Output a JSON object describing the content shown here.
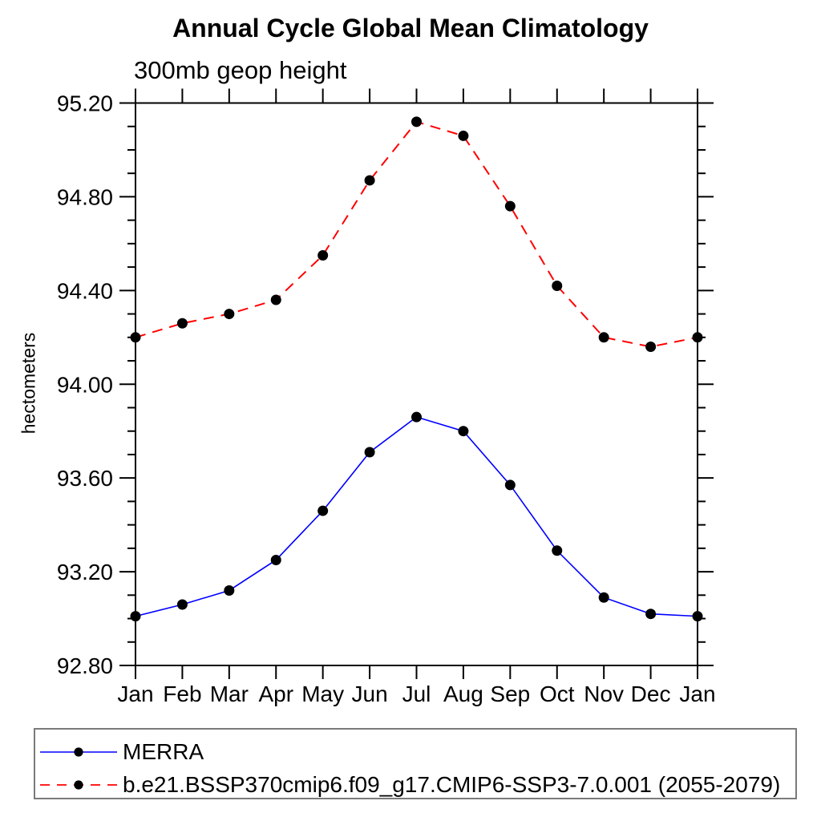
{
  "chart_data": {
    "type": "line",
    "title": "Annual Cycle Global Mean Climatology",
    "subtitle": "300mb geop height",
    "ylabel": "hectometers",
    "xlabel": "",
    "x_tick_labels": [
      "Jan",
      "Feb",
      "Mar",
      "Apr",
      "May",
      "Jun",
      "Jul",
      "Aug",
      "Sep",
      "Oct",
      "Nov",
      "Dec",
      "Jan"
    ],
    "ylim": [
      92.8,
      95.2
    ],
    "y_major_tick_step": 0.4,
    "y_minor_tick_step": 0.1,
    "y_major_tick_labels": [
      "92.80",
      "93.20",
      "93.60",
      "94.00",
      "94.40",
      "94.80",
      "95.20"
    ],
    "grid": false,
    "legend_position": "bottom",
    "marker": "filled-circle",
    "marker_color": "#000000",
    "series": [
      {
        "name": "MERRA",
        "color": "#0000ff",
        "line_style": "solid",
        "values": [
          93.01,
          93.06,
          93.12,
          93.25,
          93.46,
          93.71,
          93.86,
          93.8,
          93.57,
          93.29,
          93.09,
          93.02,
          93.01
        ]
      },
      {
        "name": "b.e21.BSSP370cmip6.f09_g17.CMIP6-SSP3-7.0.001 (2055-2079)",
        "color": "#ff0000",
        "line_style": "dashed",
        "values": [
          94.2,
          94.26,
          94.3,
          94.36,
          94.55,
          94.87,
          95.12,
          95.06,
          94.76,
          94.42,
          94.2,
          94.16,
          94.2
        ]
      }
    ]
  }
}
